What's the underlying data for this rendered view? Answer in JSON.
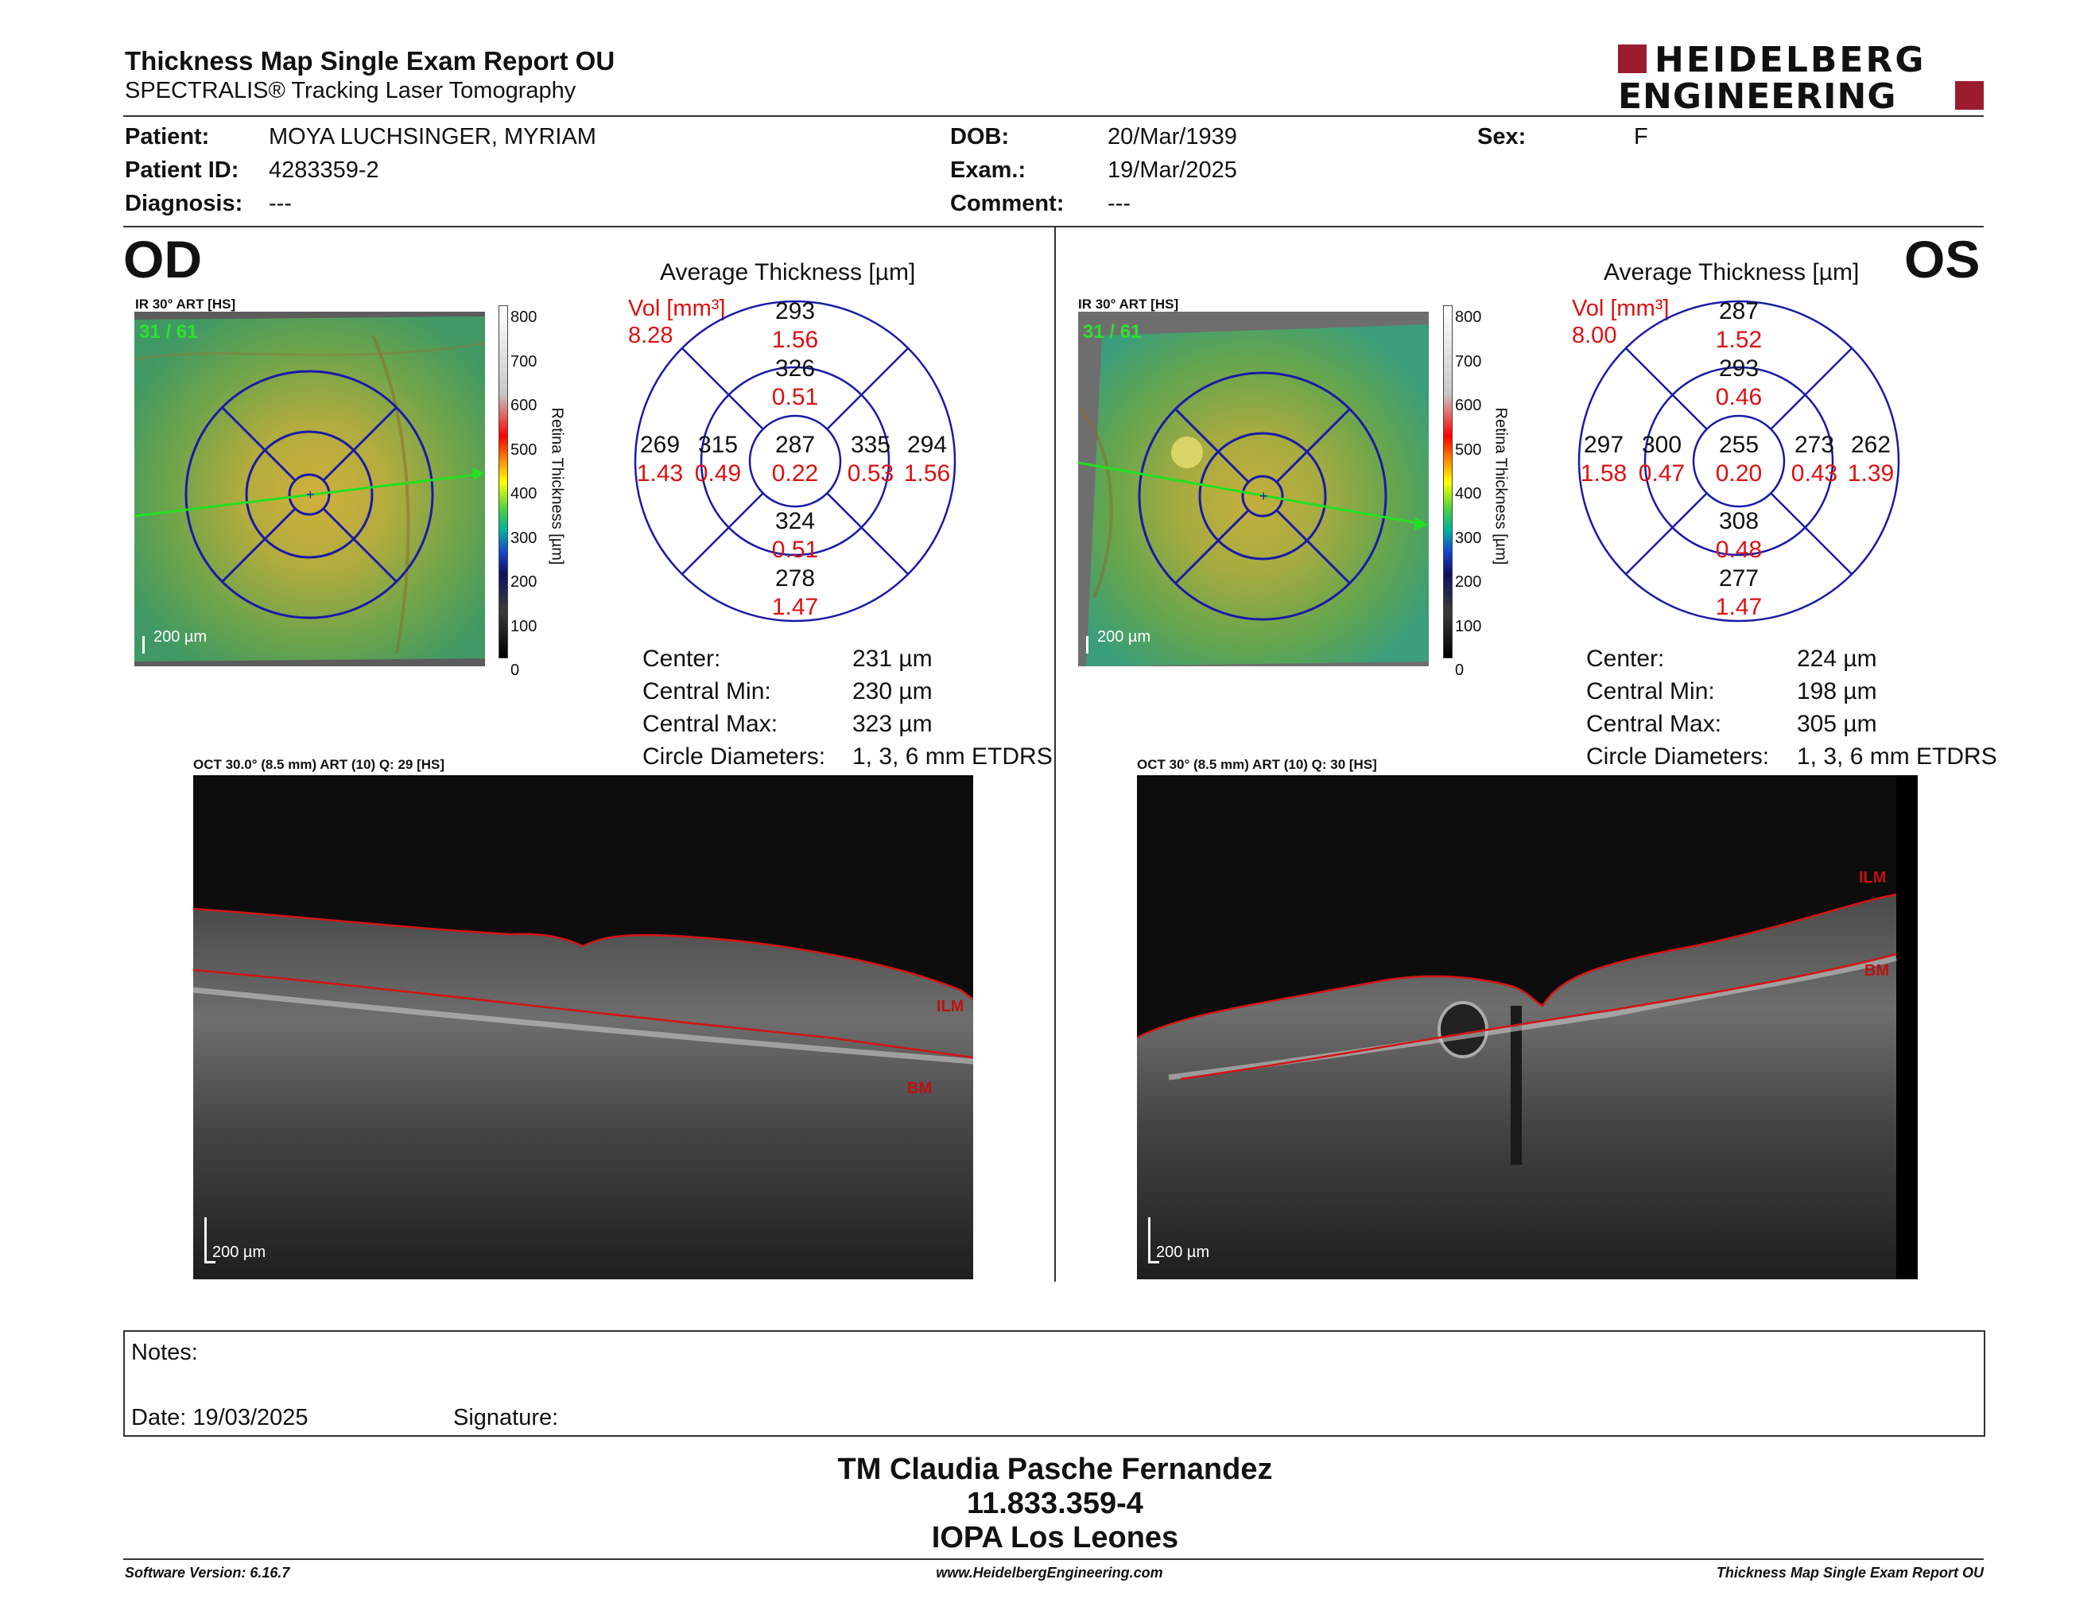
{
  "header": {
    "title": "Thickness Map Single Exam Report OU",
    "subtitle": "SPECTRALIS® Tracking Laser Tomography",
    "logo_line1": "HEIDELBERG",
    "logo_line2": "ENGINEERING",
    "logo_color": "#9b1c2e"
  },
  "patient": {
    "patient_label": "Patient:",
    "patient_value": "MOYA LUCHSINGER, MYRIAM",
    "id_label": "Patient ID:",
    "id_value": "4283359-2",
    "diagnosis_label": "Diagnosis:",
    "diagnosis_value": "---",
    "dob_label": "DOB:",
    "dob_value": "20/Mar/1939",
    "exam_label": "Exam.:",
    "exam_value": "19/Mar/2025",
    "comment_label": "Comment:",
    "comment_value": "---",
    "sex_label": "Sex:",
    "sex_value": "F"
  },
  "od": {
    "eye": "OD",
    "ir_label": "IR 30° ART [HS]",
    "frame": "31 / 61",
    "scale": "200 µm",
    "avg_title": "Average Thickness [µm]",
    "vol_label": "Vol [mm³]",
    "vol_total": "8.28",
    "sectors": {
      "outer_sup": [
        "293",
        "1.56"
      ],
      "inner_sup": [
        "326",
        "0.51"
      ],
      "outer_temp": [
        "269",
        "1.43"
      ],
      "inner_temp": [
        "315",
        "0.49"
      ],
      "center": [
        "287",
        "0.22"
      ],
      "inner_nasal": [
        "335",
        "0.53"
      ],
      "outer_nasal": [
        "294",
        "1.56"
      ],
      "inner_inf": [
        "324",
        "0.51"
      ],
      "outer_inf": [
        "278",
        "1.47"
      ]
    },
    "stats": [
      {
        "label": "Center:",
        "value": "231 µm"
      },
      {
        "label": "Central Min:",
        "value": "230 µm"
      },
      {
        "label": "Central Max:",
        "value": "323 µm"
      },
      {
        "label": "Circle Diameters:",
        "value": "1, 3, 6 mm ETDRS"
      }
    ],
    "oct_label": "OCT 30.0° (8.5 mm) ART (10) Q: 29 [HS]",
    "oct_scale": "200 µm",
    "ilm": "ILM",
    "bm": "BM"
  },
  "os": {
    "eye": "OS",
    "ir_label": "IR 30° ART [HS]",
    "frame": "31 / 61",
    "scale": "200 µm",
    "avg_title": "Average Thickness [µm]",
    "vol_label": "Vol [mm³]",
    "vol_total": "8.00",
    "sectors": {
      "outer_sup": [
        "287",
        "1.52"
      ],
      "inner_sup": [
        "293",
        "0.46"
      ],
      "outer_temp": [
        "297",
        "1.58"
      ],
      "inner_temp": [
        "300",
        "0.47"
      ],
      "center": [
        "255",
        "0.20"
      ],
      "inner_nasal": [
        "273",
        "0.43"
      ],
      "outer_nasal": [
        "262",
        "1.39"
      ],
      "inner_inf": [
        "308",
        "0.48"
      ],
      "outer_inf": [
        "277",
        "1.47"
      ]
    },
    "stats": [
      {
        "label": "Center:",
        "value": "224 µm"
      },
      {
        "label": "Central Min:",
        "value": "198 µm"
      },
      {
        "label": "Central Max:",
        "value": "305 µm"
      },
      {
        "label": "Circle Diameters:",
        "value": "1, 3, 6 mm ETDRS"
      }
    ],
    "oct_label": "OCT 30° (8.5 mm) ART (10) Q: 30 [HS]",
    "oct_scale": "200 µm",
    "ilm": "ILM",
    "bm": "BM"
  },
  "colorbar": {
    "ticks": [
      "800",
      "700",
      "600",
      "500",
      "400",
      "300",
      "200",
      "100",
      "0"
    ],
    "title": "Retina Thickness [µm]"
  },
  "notes": {
    "notes_label": "Notes:",
    "date_label": "Date: 19/03/2025",
    "signature_label": "Signature:"
  },
  "signature_block": {
    "line1": "TM Claudia Pasche Fernandez",
    "line2": "11.833.359-4",
    "line3": "IOPA Los Leones"
  },
  "footer": {
    "left": "Software Version: 6.16.7",
    "center": "www.HeidelbergEngineering.com",
    "right": "Thickness Map Single Exam Report OU"
  }
}
